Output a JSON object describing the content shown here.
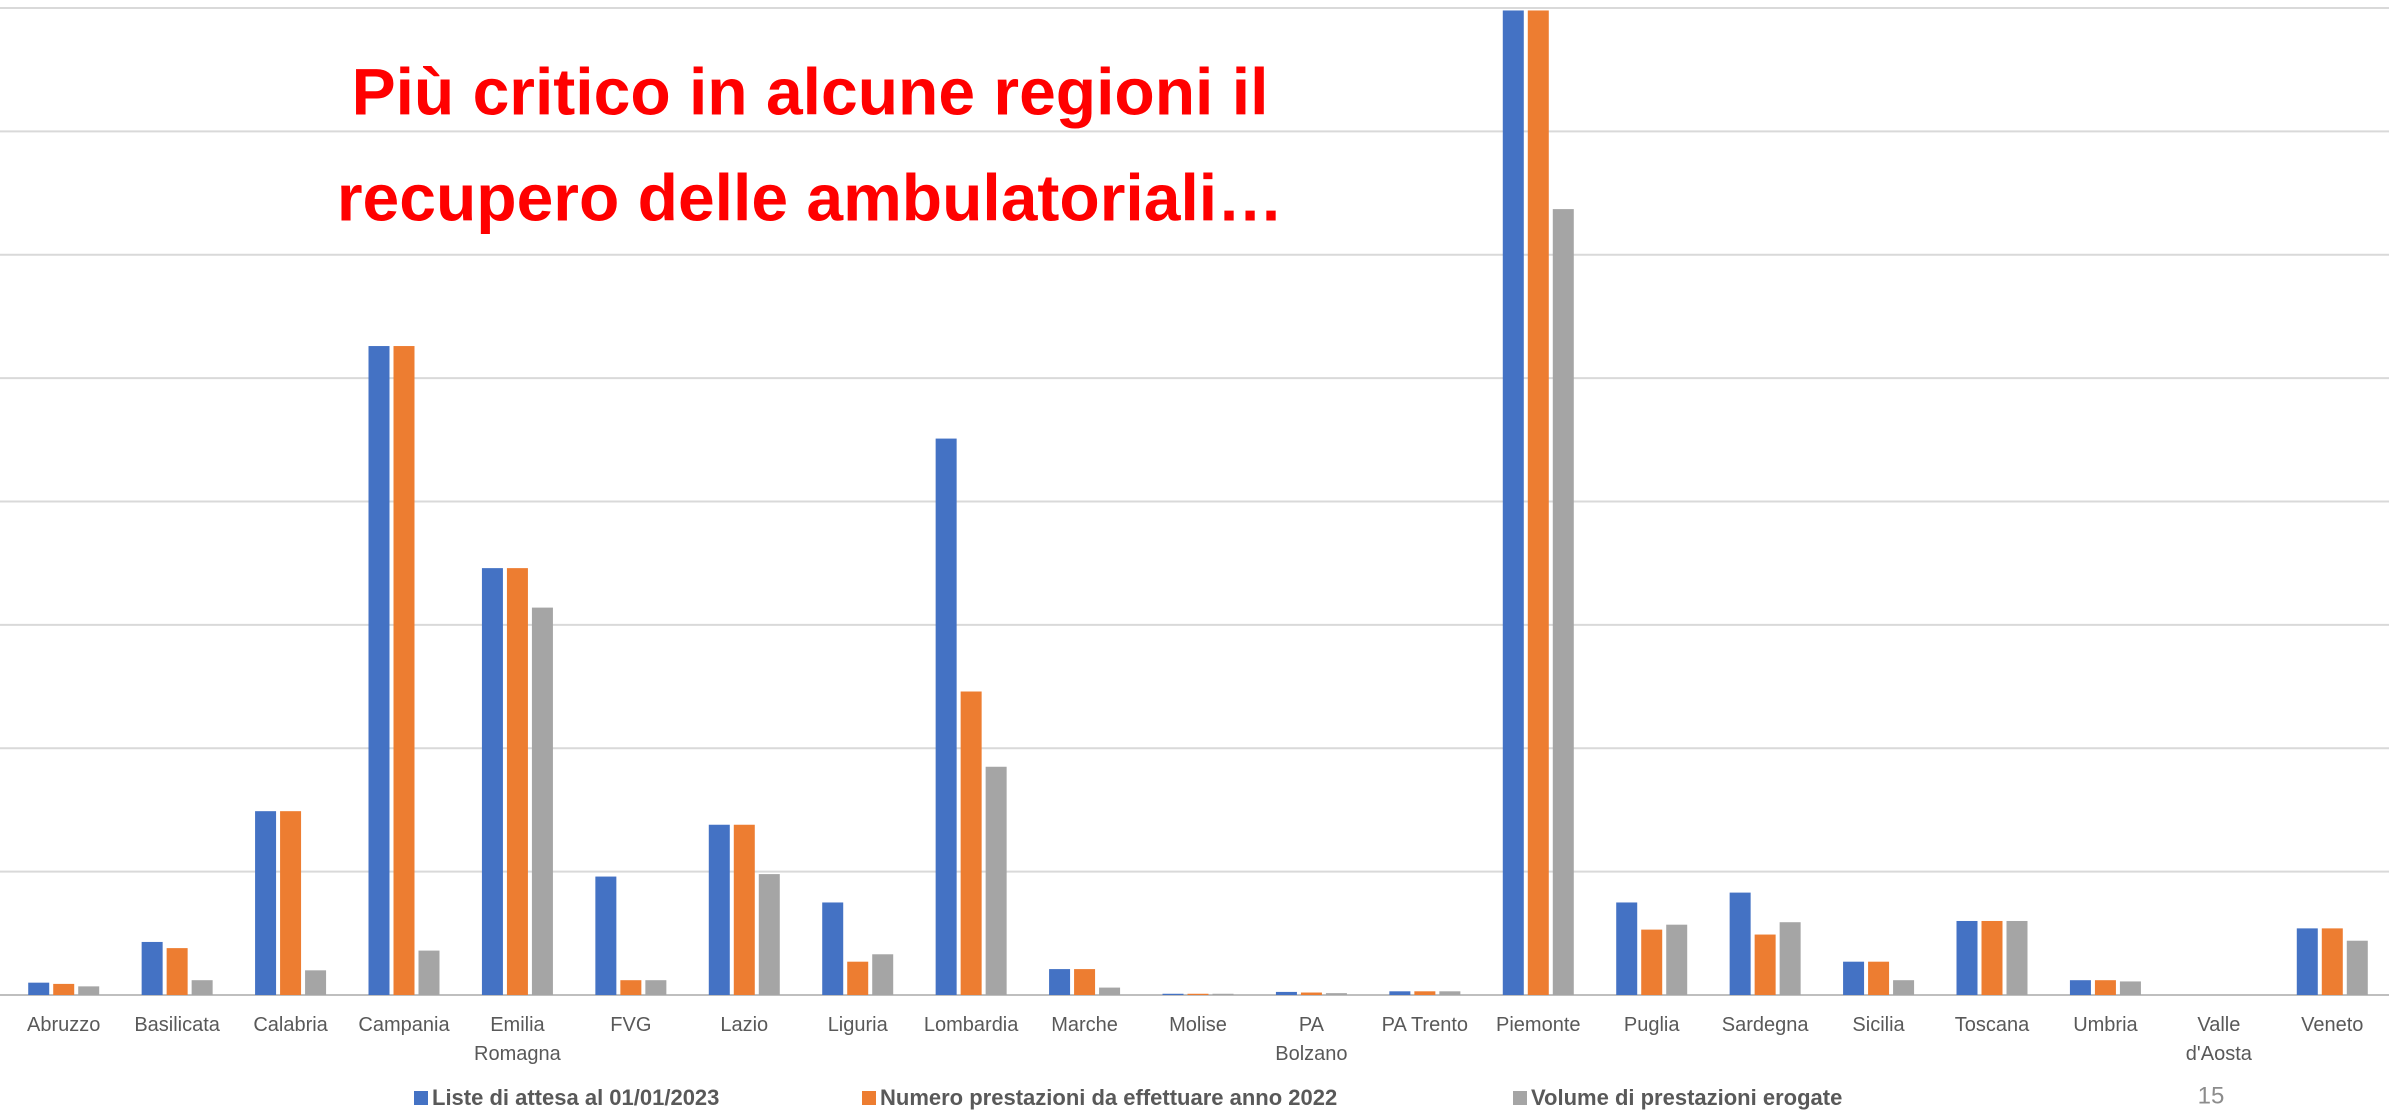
{
  "chart_data": {
    "type": "bar",
    "title_lines": [
      "Più critico in alcune regioni il",
      "recupero delle  ambulatoriali…"
    ],
    "categories": [
      "Abruzzo",
      "Basilicata",
      "Calabria",
      "Campania",
      "Emilia Romagna",
      "FVG",
      "Lazio",
      "Liguria",
      "Lombardia",
      "Marche",
      "Molise",
      "PA Bolzano",
      "PA Trento",
      "Piemonte",
      "Puglia",
      "Sardegna",
      "Sicilia",
      "Toscana",
      "Umbria",
      "Valle d'Aosta",
      "Veneto"
    ],
    "series": [
      {
        "name": "Liste di attesa al 01/01/2023",
        "color": "#4472c4",
        "values": [
          0.1,
          0.43,
          1.49,
          5.26,
          3.46,
          0.96,
          1.38,
          0.75,
          4.51,
          0.21,
          0.01,
          0.025,
          0.03,
          7.98,
          0.75,
          0.83,
          0.27,
          0.6,
          0.12,
          0,
          0.54
        ]
      },
      {
        "name": "Numero prestazioni da effettuare anno 2022",
        "color": "#ed7d31",
        "values": [
          0.09,
          0.38,
          1.49,
          5.26,
          3.46,
          0.12,
          1.38,
          0.27,
          2.46,
          0.21,
          0.01,
          0.02,
          0.03,
          7.98,
          0.53,
          0.49,
          0.27,
          0.6,
          0.12,
          0,
          0.54
        ]
      },
      {
        "name": "Volume di prestazioni erogate",
        "color": "#a5a5a5",
        "values": [
          0.07,
          0.12,
          0.2,
          0.36,
          3.14,
          0.12,
          0.98,
          0.33,
          1.85,
          0.06,
          0.01,
          0.015,
          0.03,
          6.37,
          0.57,
          0.59,
          0.12,
          0.6,
          0.11,
          0,
          0.44
        ]
      }
    ],
    "ylim": [
      0,
      8
    ],
    "yticks": [
      0,
      1,
      2,
      3,
      4,
      5,
      6,
      7,
      8
    ],
    "grid": true,
    "legend": "bottom",
    "page_number": "15"
  }
}
